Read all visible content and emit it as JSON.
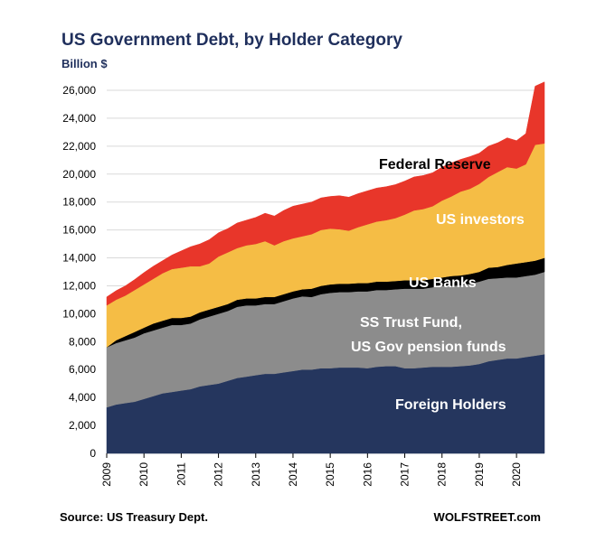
{
  "chart_data": {
    "type": "area",
    "stacked": true,
    "title": "US Government Debt, by Holder Category",
    "ylabel": "Billion $",
    "xlabel": "",
    "ylim": [
      0,
      26000
    ],
    "yticks": [
      0,
      2000,
      4000,
      6000,
      8000,
      10000,
      12000,
      14000,
      16000,
      18000,
      20000,
      22000,
      24000,
      26000
    ],
    "ytick_labels": [
      "0",
      "2,000",
      "4,000",
      "6,000",
      "8,000",
      "10,000",
      "12,000",
      "14,000",
      "16,000",
      "18,000",
      "20,000",
      "22,000",
      "24,000",
      "26,000"
    ],
    "xlim": [
      2009,
      2020.75
    ],
    "xticks": [
      2009,
      2010,
      2011,
      2012,
      2013,
      2014,
      2015,
      2016,
      2017,
      2018,
      2019,
      2020
    ],
    "x": [
      2009.0,
      2009.25,
      2009.5,
      2009.75,
      2010.0,
      2010.25,
      2010.5,
      2010.75,
      2011.0,
      2011.25,
      2011.5,
      2011.75,
      2012.0,
      2012.25,
      2012.5,
      2012.75,
      2013.0,
      2013.25,
      2013.5,
      2013.75,
      2014.0,
      2014.25,
      2014.5,
      2014.75,
      2015.0,
      2015.25,
      2015.5,
      2015.75,
      2016.0,
      2016.25,
      2016.5,
      2016.75,
      2017.0,
      2017.25,
      2017.5,
      2017.75,
      2018.0,
      2018.25,
      2018.5,
      2018.75,
      2019.0,
      2019.25,
      2019.5,
      2019.75,
      2020.0,
      2020.25,
      2020.5,
      2020.75
    ],
    "series": [
      {
        "name": "Foreign Holders",
        "label": "Foreign Holders",
        "color": "#25365e",
        "values": [
          3300,
          3500,
          3600,
          3700,
          3900,
          4100,
          4300,
          4400,
          4500,
          4600,
          4800,
          4900,
          5000,
          5200,
          5400,
          5500,
          5600,
          5700,
          5700,
          5800,
          5900,
          6000,
          6000,
          6100,
          6100,
          6150,
          6150,
          6150,
          6100,
          6200,
          6250,
          6250,
          6100,
          6100,
          6150,
          6200,
          6200,
          6200,
          6250,
          6300,
          6400,
          6600,
          6700,
          6800,
          6800,
          6900,
          7000,
          7100
        ]
      },
      {
        "name": "SS Trust Fund, US Gov pension funds",
        "label_lines": [
          "SS Trust Fund,",
          "US Gov pension funds"
        ],
        "color": "#8c8c8c",
        "values": [
          4300,
          4400,
          4500,
          4600,
          4700,
          4700,
          4700,
          4800,
          4700,
          4700,
          4800,
          4900,
          5000,
          5000,
          5100,
          5100,
          5000,
          5000,
          5000,
          5100,
          5200,
          5250,
          5200,
          5300,
          5400,
          5400,
          5400,
          5450,
          5500,
          5500,
          5450,
          5500,
          5700,
          5700,
          5650,
          5700,
          5800,
          5800,
          5800,
          5850,
          5900,
          5900,
          5850,
          5800,
          5800,
          5800,
          5800,
          5900
        ]
      },
      {
        "name": "US Banks",
        "label": "US Banks",
        "color": "#000000",
        "values": [
          0,
          200,
          300,
          400,
          400,
          500,
          500,
          500,
          500,
          500,
          500,
          500,
          500,
          500,
          500,
          500,
          500,
          500,
          500,
          500,
          500,
          500,
          600,
          600,
          600,
          600,
          600,
          600,
          600,
          600,
          600,
          600,
          600,
          600,
          600,
          600,
          600,
          700,
          700,
          700,
          700,
          800,
          800,
          900,
          1000,
          1000,
          1000,
          1000
        ]
      },
      {
        "name": "US investors",
        "label": "US investors",
        "color": "#f5bd45",
        "values": [
          3000,
          2900,
          2900,
          3000,
          3100,
          3200,
          3400,
          3500,
          3600,
          3600,
          3300,
          3300,
          3600,
          3700,
          3700,
          3800,
          3900,
          4000,
          3700,
          3800,
          3800,
          3800,
          3900,
          4000,
          4000,
          3900,
          3800,
          4000,
          4200,
          4300,
          4400,
          4500,
          4700,
          5000,
          5100,
          5200,
          5500,
          5700,
          6000,
          6100,
          6300,
          6500,
          6800,
          7000,
          6800,
          7000,
          8300,
          8200
        ]
      },
      {
        "name": "Federal Reserve",
        "label": "Federal Reserve",
        "color": "#e8362a",
        "values": [
          600,
          650,
          700,
          750,
          850,
          900,
          900,
          1000,
          1200,
          1400,
          1600,
          1700,
          1700,
          1700,
          1800,
          1800,
          1900,
          2000,
          2100,
          2200,
          2300,
          2300,
          2300,
          2300,
          2300,
          2400,
          2400,
          2400,
          2400,
          2400,
          2400,
          2400,
          2400,
          2400,
          2400,
          2400,
          2400,
          2400,
          2300,
          2300,
          2200,
          2200,
          2100,
          2100,
          2000,
          2200,
          4200,
          4400
        ]
      }
    ],
    "label_colors": {
      "Foreign Holders": "#ffffff",
      "SS Trust Fund, US Gov pension funds": "#ffffff",
      "US Banks": "#ffffff",
      "US investors": "#ffffff",
      "Federal Reserve": "#000000"
    },
    "grid": true,
    "legend": "inline labels"
  },
  "footer": {
    "source": "Source: US Treasury Dept.",
    "brand": "WOLFSTREET.com"
  }
}
